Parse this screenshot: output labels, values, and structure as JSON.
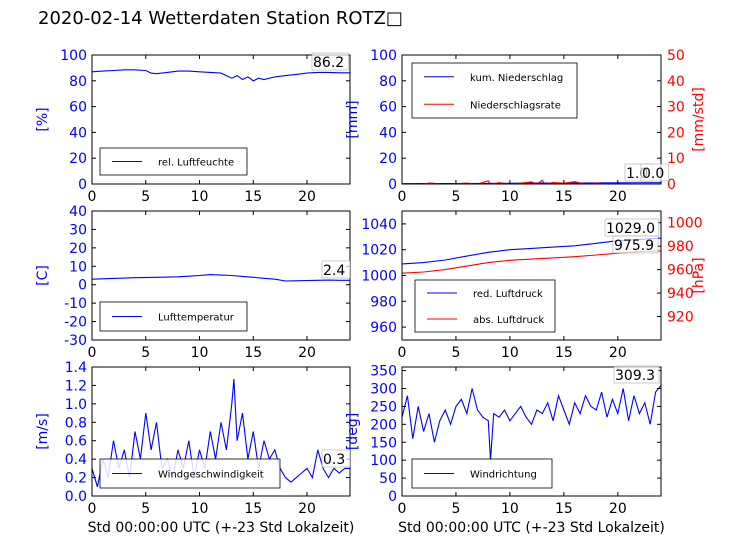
{
  "title": "2020-02-14 Wetterdaten Station ROTZ□",
  "colors": {
    "primary": "#0000ff",
    "secondary": "#ff0000",
    "axis": "#000000"
  },
  "chart_data": [
    {
      "type": "line",
      "panel": "top-left",
      "xlabel": "",
      "ylabel": "[%]",
      "xlim": [
        0,
        24
      ],
      "ylim": [
        0,
        100
      ],
      "xticks": [
        0,
        5,
        10,
        15,
        20
      ],
      "yticks": [
        0,
        20,
        40,
        60,
        80,
        100
      ],
      "grid": false,
      "legend_position": "lower-left",
      "current_value": "86.2",
      "series": [
        {
          "name": "rel. Luftfeuchte",
          "color": "#0000ff",
          "x": [
            0,
            1,
            2,
            3,
            4,
            5,
            5.5,
            6,
            7,
            8,
            9,
            10,
            11,
            12,
            12.5,
            13,
            13.5,
            14,
            14.5,
            15,
            15.5,
            16,
            17,
            18,
            19,
            20,
            21,
            22,
            23,
            24
          ],
          "y": [
            87,
            87.5,
            88,
            88.5,
            88.5,
            88,
            86,
            85.5,
            86.5,
            87.5,
            87.5,
            87,
            86.5,
            86,
            84,
            82,
            84,
            81,
            83,
            80,
            82,
            81,
            83,
            84,
            85,
            86,
            86.5,
            86.5,
            86.2,
            86.2
          ]
        }
      ]
    },
    {
      "type": "line",
      "panel": "top-right",
      "xlabel": "",
      "ylabel": "[mm]",
      "ylabel_right": "[mm/std]",
      "xlim": [
        0,
        24
      ],
      "ylim": [
        0,
        100
      ],
      "ylim_right": [
        0,
        50
      ],
      "xticks": [
        0,
        5,
        10,
        15,
        20
      ],
      "yticks": [
        0,
        20,
        40,
        60,
        80,
        100
      ],
      "yticks_right": [
        0,
        10,
        20,
        30,
        40,
        50
      ],
      "grid": false,
      "legend_position": "upper-left",
      "current_value": "1.0",
      "current_value_right": "0.0",
      "series": [
        {
          "name": "kum. Niederschlag",
          "color": "#0000ff",
          "axis": "left",
          "x": [
            0,
            4,
            8,
            12,
            16,
            20,
            24
          ],
          "y": [
            0.2,
            0.3,
            0.5,
            0.7,
            0.8,
            0.9,
            1.0
          ]
        },
        {
          "name": "Niederschlagsrate",
          "color": "#ff0000",
          "axis": "right",
          "x": [
            0,
            2,
            2.5,
            4,
            6,
            7,
            8,
            8.2,
            9,
            10,
            11,
            12,
            12.5,
            13,
            13.2,
            14,
            15,
            16,
            17,
            18,
            19,
            20,
            21,
            22,
            23,
            24
          ],
          "y": [
            0,
            0,
            0.4,
            0,
            0.3,
            0,
            1.2,
            0,
            0.5,
            0,
            0.3,
            0.8,
            0,
            1.4,
            0,
            0.6,
            0.3,
            0.9,
            0,
            0.4,
            0,
            0,
            0,
            0,
            0,
            0
          ]
        }
      ]
    },
    {
      "type": "line",
      "panel": "middle-left",
      "xlabel": "",
      "ylabel": "[C]",
      "xlim": [
        0,
        24
      ],
      "ylim": [
        -30,
        40
      ],
      "xticks": [
        0,
        5,
        10,
        15,
        20
      ],
      "yticks": [
        -30,
        -20,
        -10,
        0,
        10,
        20,
        30,
        40
      ],
      "grid": false,
      "legend_position": "lower-left",
      "current_value": "2.4",
      "series": [
        {
          "name": "Lufttemperatur",
          "color": "#0000ff",
          "x": [
            0,
            2,
            4,
            6,
            8,
            9,
            10,
            11,
            12,
            13,
            14,
            15,
            16,
            17,
            18,
            19,
            20,
            21,
            22,
            23,
            24
          ],
          "y": [
            3.0,
            3.4,
            3.8,
            4.0,
            4.3,
            4.6,
            5.0,
            5.5,
            5.2,
            5.0,
            4.5,
            4.0,
            3.5,
            3.0,
            2.0,
            2.1,
            2.3,
            2.4,
            2.5,
            2.4,
            2.4
          ]
        }
      ]
    },
    {
      "type": "line",
      "panel": "middle-right",
      "xlabel": "",
      "ylabel": "",
      "ylabel_right": "[hPa]",
      "xlim": [
        0,
        24
      ],
      "ylim": [
        950,
        1050
      ],
      "ylim_right": [
        900,
        1010
      ],
      "xticks": [
        0,
        5,
        10,
        15,
        20
      ],
      "yticks": [
        960,
        980,
        1000,
        1020,
        1040
      ],
      "yticks_right": [
        920,
        940,
        960,
        980,
        1000
      ],
      "grid": false,
      "legend_position": "lower-left",
      "current_value": "1029.0",
      "current_value_right": "975.9",
      "series": [
        {
          "name": "red. Luftdruck",
          "color": "#0000ff",
          "axis": "left",
          "x": [
            0,
            2,
            4,
            6,
            8,
            10,
            12,
            14,
            16,
            18,
            20,
            22,
            24
          ],
          "y": [
            1009,
            1010,
            1012,
            1015,
            1018,
            1020,
            1021,
            1022,
            1023,
            1025,
            1027,
            1028,
            1029
          ]
        },
        {
          "name": "abs. Luftdruck",
          "color": "#ff0000",
          "axis": "right",
          "x": [
            0,
            2,
            4,
            6,
            8,
            10,
            12,
            14,
            16,
            18,
            20,
            22,
            24
          ],
          "y": [
            957,
            958,
            960,
            963,
            966,
            968,
            969,
            970,
            971,
            972.5,
            974,
            975.5,
            975.9
          ]
        }
      ]
    },
    {
      "type": "line",
      "panel": "bottom-left",
      "xlabel": "Std 00:00:00 UTC (+-23 Std Lokalzeit)",
      "ylabel": "[m/s]",
      "xlim": [
        0,
        24
      ],
      "ylim": [
        0,
        1.4
      ],
      "xticks": [
        0,
        5,
        10,
        15,
        20
      ],
      "yticks": [
        0.0,
        0.2,
        0.4,
        0.6,
        0.8,
        1.0,
        1.2,
        1.4
      ],
      "grid": false,
      "legend_position": "lower-left",
      "current_value": "0.3",
      "series": [
        {
          "name": "Windgeschwindigkeit",
          "color": "#0000ff",
          "x": [
            0,
            0.5,
            1,
            1.5,
            2,
            2.5,
            3,
            3.5,
            4,
            4.5,
            5,
            5.5,
            6,
            6.5,
            7,
            7.5,
            8,
            8.5,
            9,
            9.5,
            10,
            10.5,
            11,
            11.5,
            12,
            12.5,
            13,
            13.2,
            13.5,
            14,
            14.5,
            15,
            15.5,
            16,
            16.5,
            17,
            17.5,
            18,
            18.5,
            19,
            19.5,
            20,
            20.5,
            21,
            21.5,
            22,
            22.5,
            23,
            23.5,
            24
          ],
          "y": [
            0.3,
            0.1,
            0.4,
            0.2,
            0.6,
            0.3,
            0.5,
            0.2,
            0.7,
            0.4,
            0.9,
            0.5,
            0.8,
            0.3,
            0.4,
            0.2,
            0.5,
            0.3,
            0.6,
            0.2,
            0.5,
            0.3,
            0.7,
            0.4,
            0.8,
            0.5,
            1.0,
            1.27,
            0.6,
            0.9,
            0.4,
            0.7,
            0.3,
            0.6,
            0.4,
            0.5,
            0.3,
            0.2,
            0.15,
            0.2,
            0.25,
            0.3,
            0.2,
            0.5,
            0.3,
            0.2,
            0.3,
            0.25,
            0.3,
            0.3
          ]
        }
      ]
    },
    {
      "type": "line",
      "panel": "bottom-right",
      "xlabel": "Std 00:00:00 UTC (+-23 Std Lokalzeit)",
      "ylabel": "[deg]",
      "xlim": [
        0,
        24
      ],
      "ylim": [
        0,
        360
      ],
      "xticks": [
        0,
        5,
        10,
        15,
        20
      ],
      "yticks": [
        0,
        50,
        100,
        150,
        200,
        250,
        300,
        350
      ],
      "grid": false,
      "legend_position": "lower-left",
      "current_value": "309.3",
      "series": [
        {
          "name": "Windrichtung",
          "color": "#0000ff",
          "x": [
            0,
            0.5,
            1,
            1.5,
            2,
            2.5,
            3,
            3.5,
            4,
            4.5,
            5,
            5.5,
            6,
            6.5,
            7,
            7.5,
            8,
            8.2,
            8.5,
            9,
            9.5,
            10,
            10.5,
            11,
            11.5,
            12,
            12.5,
            13,
            13.5,
            14,
            14.5,
            15,
            15.5,
            16,
            16.5,
            17,
            17.5,
            18,
            18.5,
            19,
            19.5,
            20,
            20.5,
            21,
            21.5,
            22,
            22.5,
            23,
            23.5,
            24
          ],
          "y": [
            220,
            280,
            160,
            250,
            180,
            230,
            150,
            210,
            240,
            200,
            250,
            270,
            230,
            300,
            240,
            220,
            210,
            100,
            230,
            220,
            240,
            210,
            230,
            250,
            220,
            200,
            240,
            230,
            260,
            210,
            280,
            240,
            200,
            260,
            230,
            280,
            250,
            240,
            290,
            220,
            270,
            230,
            300,
            210,
            280,
            230,
            260,
            200,
            290,
            309
          ]
        }
      ]
    }
  ]
}
